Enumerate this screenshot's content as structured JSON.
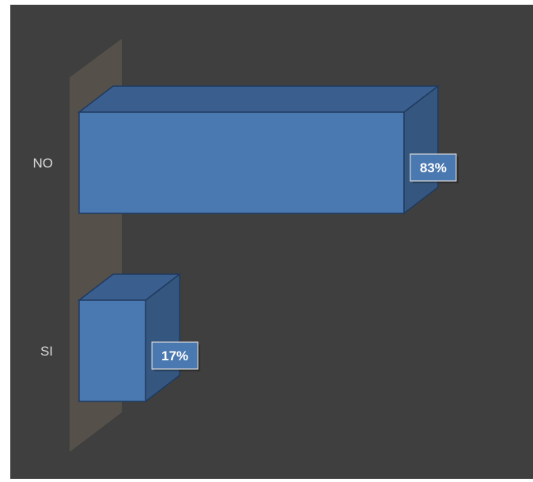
{
  "chart_data": {
    "type": "bar",
    "orientation": "horizontal",
    "style": "3d",
    "categories": [
      "NO",
      "SI"
    ],
    "values": [
      83,
      17
    ],
    "value_labels": [
      "83%",
      "17%"
    ],
    "title": "",
    "xlabel": "",
    "ylabel": "",
    "xlim": [
      0,
      100
    ],
    "grid": false,
    "legend": "none"
  },
  "colors": {
    "background": "#3f3f3f",
    "bar_front": "#4a78b0",
    "bar_top": "#3a5f8f",
    "bar_side": "#35577f",
    "bar_edge": "#1f3a5f",
    "wall": "#59544b",
    "label_text": "#d9d9d9",
    "value_box_border": "#d9d9d9"
  }
}
